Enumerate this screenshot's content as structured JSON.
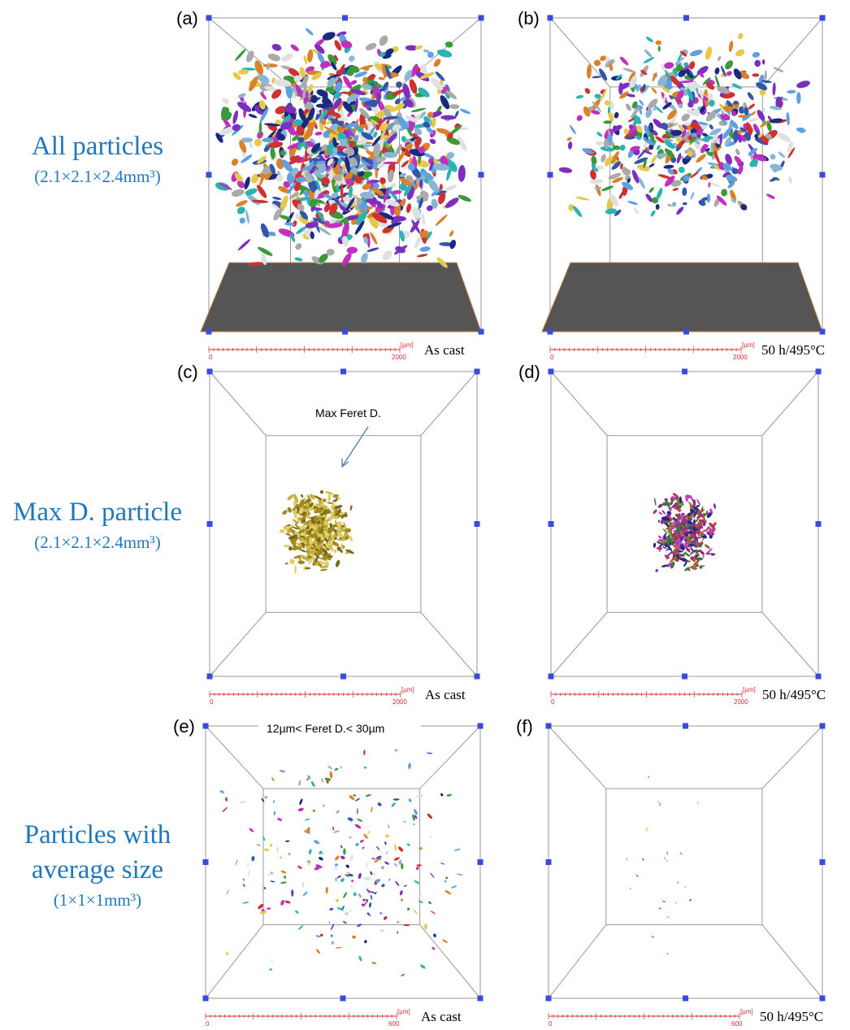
{
  "rows": [
    {
      "label": [
        "All particles"
      ],
      "size": "(2.1×2.1×2.4mm³)"
    },
    {
      "label": [
        "Max D. particle"
      ],
      "size": "(2.1×2.1×2.4mm³)"
    },
    {
      "label": [
        "Particles with",
        "average size"
      ],
      "size": "(1×1×1mm³)"
    }
  ],
  "panels": [
    {
      "label": "(a)",
      "condition": "As cast",
      "scale": {
        "start": "0",
        "end": "2000",
        "unit": "[µm]"
      }
    },
    {
      "label": "(b)",
      "condition": "50 h/495°C",
      "scale": {
        "start": "0",
        "end": "2000",
        "unit": "[µm]"
      }
    },
    {
      "label": "(c)",
      "condition": "As cast",
      "scale": {
        "start": "0",
        "end": "2000",
        "unit": "[µm]"
      },
      "annotation": "Max Feret D."
    },
    {
      "label": "(d)",
      "condition": "50 h/495°C",
      "scale": {
        "start": "0",
        "end": "2000",
        "unit": "[µm]"
      }
    },
    {
      "label": "(e)",
      "condition": "As cast",
      "scale": {
        "start": "0",
        "end": "600",
        "unit": "[µm]"
      },
      "annotation": "12µm< Feret D.< 30µm"
    },
    {
      "label": "(f)",
      "condition": "50 h/495°C",
      "scale": {
        "start": "0",
        "end": "600",
        "unit": "[µm]"
      }
    }
  ]
}
